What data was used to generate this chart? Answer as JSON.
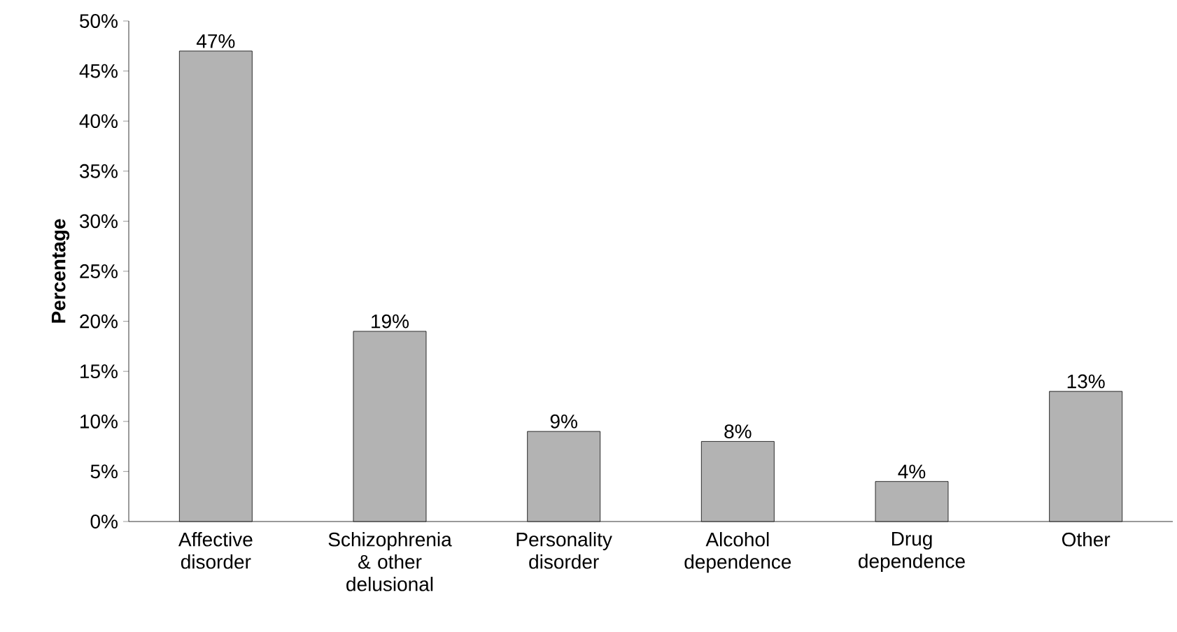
{
  "chart_data": {
    "type": "bar",
    "ylabel": "Percentage",
    "categories": [
      "Affective disorder",
      "Schizophrenia & other delusional",
      "Personality disorder",
      "Alcohol dependence",
      "Drug dependence",
      "Other"
    ],
    "values": [
      47,
      19,
      9,
      8,
      4,
      13
    ],
    "value_labels": [
      "47%",
      "19%",
      "9%",
      "8%",
      "4%",
      "13%"
    ],
    "color": "#b3b3b3",
    "ylim": [
      0,
      50
    ],
    "yticks": [
      {
        "value": 0,
        "label": "0%"
      },
      {
        "value": 5,
        "label": "5%"
      },
      {
        "value": 10,
        "label": "10%"
      },
      {
        "value": 15,
        "label": "15%"
      },
      {
        "value": 20,
        "label": "20%"
      },
      {
        "value": 25,
        "label": "25%"
      },
      {
        "value": 30,
        "label": "30%"
      },
      {
        "value": 35,
        "label": "35%"
      },
      {
        "value": 40,
        "label": "40%"
      },
      {
        "value": 45,
        "label": "45%"
      },
      {
        "value": 50,
        "label": "50%"
      }
    ],
    "grid": false
  }
}
